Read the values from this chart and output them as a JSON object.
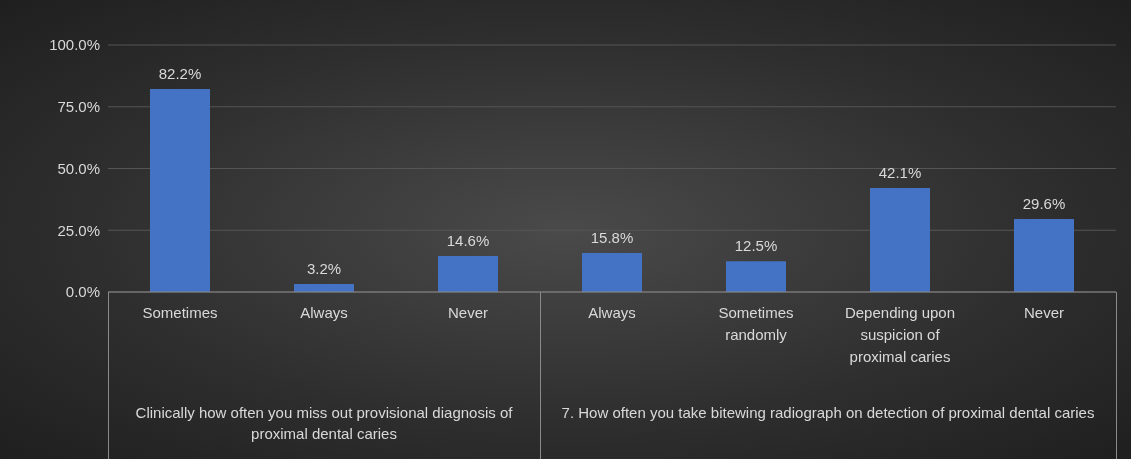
{
  "chart_data": [
    {
      "type": "bar",
      "categories": [
        "Sometimes",
        "Always",
        "Never"
      ],
      "values": [
        82.2,
        3.2,
        14.6
      ],
      "color": "#4472c4",
      "value_labels": [
        "82.2%",
        "3.2%",
        "14.6%"
      ],
      "ylim": [
        0,
        100
      ],
      "yticks": [
        {
          "value": 0,
          "label": "0.0%"
        },
        {
          "value": 25,
          "label": "25.0%"
        },
        {
          "value": 50,
          "label": "50.0%"
        },
        {
          "value": 75,
          "label": "75.0%"
        },
        {
          "value": 100,
          "label": "100.0%"
        }
      ],
      "grid": "y",
      "xlabel": "Clinically how often you miss out provisional diagnosis of proximal dental caries"
    },
    {
      "type": "bar",
      "categories": [
        "Always",
        "Sometimes randomly",
        "Depending upon suspicion of proximal  caries",
        "Never"
      ],
      "values": [
        15.8,
        12.5,
        42.1,
        29.6
      ],
      "color": "#4472c4",
      "value_labels": [
        "15.8%",
        "12.5%",
        "42.1%",
        "29.6%"
      ],
      "ylim": [
        0,
        100
      ],
      "yticks": [
        0,
        25,
        50,
        75,
        100
      ],
      "grid": "y",
      "tick_labels": "x",
      "xlabel": "7. How often you take bitewing radiograph on detection of proximal dental caries"
    }
  ]
}
